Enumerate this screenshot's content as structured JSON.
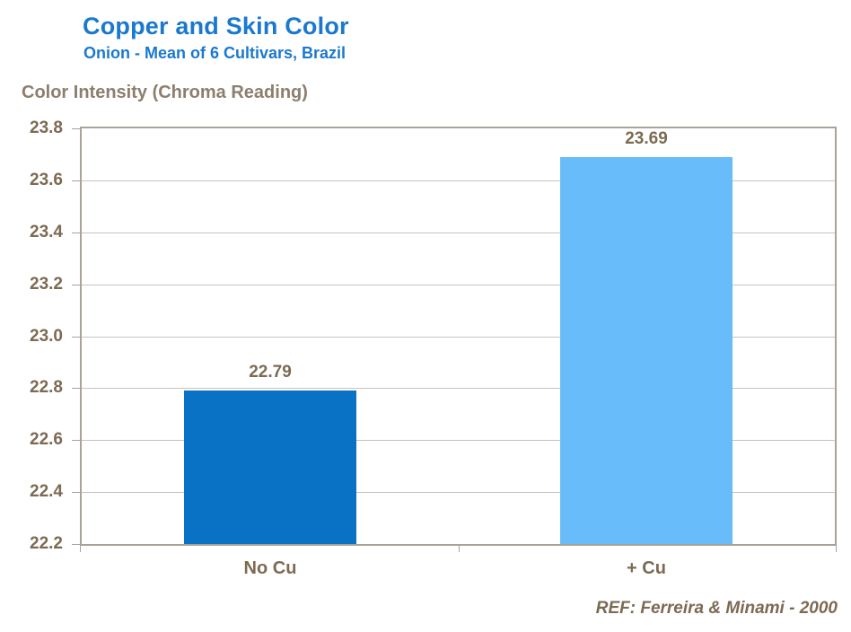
{
  "header": {
    "title": "Copper and Skin Color",
    "subtitle": "Onion - Mean of 6 Cultivars, Brazil"
  },
  "axis": {
    "y_title": "Color Intensity (Chroma Reading)"
  },
  "footer": {
    "reference": "REF: Ferreira & Minami - 2000"
  },
  "colors": {
    "title_blue": "#1a79ce",
    "bar_no_cu": "#0a72c4",
    "bar_plus_cu": "#69bcfa",
    "text_brown": "#7c6a52",
    "axis_title_brown": "#8d7e6d",
    "plot_border": "#a8a29a",
    "gridline": "#c5c3bf"
  },
  "chart_data": {
    "type": "bar",
    "title": "Copper and Skin Color",
    "subtitle": "Onion - Mean of 6 Cultivars, Brazil",
    "ylabel": "Color Intensity (Chroma Reading)",
    "xlabel": "",
    "categories": [
      "No Cu",
      "+ Cu"
    ],
    "values": [
      22.79,
      23.69
    ],
    "data_labels": [
      "22.79",
      "23.69"
    ],
    "bar_colors": [
      "#0a72c4",
      "#69bcfa"
    ],
    "ylim": [
      22.2,
      23.8
    ],
    "ytick_labels": [
      "22.2",
      "22.4",
      "22.6",
      "22.8",
      "23.0",
      "23.2",
      "23.4",
      "23.6",
      "23.8"
    ],
    "ytick_step": 0.2,
    "grid": true,
    "legend": false,
    "annotation": "REF: Ferreira & Minami - 2000"
  }
}
